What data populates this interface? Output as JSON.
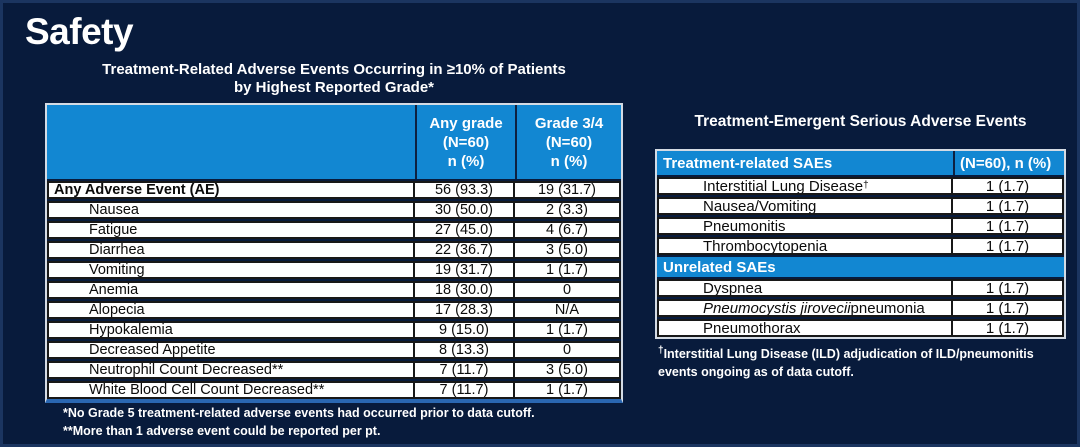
{
  "slide": {
    "title": "Safety"
  },
  "colors": {
    "background": "#081B3C",
    "edge_border": "#1B3560",
    "header_blue": "#1287D2",
    "bottom_strip_blue": "#2A67B2",
    "cell_border": "#181818",
    "table_outline": "#D4DBE4",
    "text_light": "#FFFFFF",
    "text_dark": "#0B0B0B"
  },
  "left_table": {
    "title_line1": "Treatment-Related Adverse Events Occurring in ≥10% of Patients",
    "title_line2": "by Highest Reported Grade*",
    "columns": [
      {
        "lines": [
          "Any grade",
          "(N=60)",
          "n (%)"
        ]
      },
      {
        "lines": [
          "Grade 3/4",
          "(N=60)",
          "n (%)"
        ]
      }
    ],
    "rows": [
      {
        "label": "Any Adverse Event (AE)",
        "any_grade": "56 (93.3)",
        "grade_3_4": "19 (31.7)"
      },
      {
        "label": "Nausea",
        "any_grade": "30 (50.0)",
        "grade_3_4": "2 (3.3)"
      },
      {
        "label": "Fatigue",
        "any_grade": "27 (45.0)",
        "grade_3_4": "4 (6.7)"
      },
      {
        "label": "Diarrhea",
        "any_grade": "22 (36.7)",
        "grade_3_4": "3 (5.0)"
      },
      {
        "label": "Vomiting",
        "any_grade": "19 (31.7)",
        "grade_3_4": "1 (1.7)"
      },
      {
        "label": "Anemia",
        "any_grade": "18 (30.0)",
        "grade_3_4": "0"
      },
      {
        "label": "Alopecia",
        "any_grade": "17 (28.3)",
        "grade_3_4": "N/A"
      },
      {
        "label": "Hypokalemia",
        "any_grade": "9 (15.0)",
        "grade_3_4": "1 (1.7)"
      },
      {
        "label": "Decreased Appetite",
        "any_grade": "8 (13.3)",
        "grade_3_4": "0"
      },
      {
        "label": "Neutrophil Count Decreased**",
        "any_grade": "7 (11.7)",
        "grade_3_4": "3 (5.0)"
      },
      {
        "label": "White Blood Cell Count Decreased**",
        "any_grade": "7 (11.7)",
        "grade_3_4": "1 (1.7)"
      }
    ],
    "footnote1": "*No Grade 5 treatment-related adverse events had occurred prior to data cutoff.",
    "footnote2": "**More than 1 adverse event could be reported per pt."
  },
  "right_table": {
    "title": "Treatment-Emergent Serious Adverse Events",
    "header": {
      "label": "Treatment-related SAEs",
      "value": "(N=60), n (%)"
    },
    "related_rows": [
      {
        "label": "Interstitial Lung Disease",
        "sup": "†",
        "value": "1 (1.7)"
      },
      {
        "label": "Nausea/Vomiting",
        "value": "1 (1.7)"
      },
      {
        "label": "Pneumonitis",
        "value": "1 (1.7)"
      },
      {
        "label": "Thrombocytopenia",
        "value": "1 (1.7)"
      }
    ],
    "section_label": "Unrelated SAEs",
    "unrelated_rows": [
      {
        "label": "Dyspnea",
        "value": "1 (1.7)"
      },
      {
        "label_italic": "Pneumocystis jirovecii",
        "label_rest": " pneumonia",
        "value": "1 (1.7)"
      },
      {
        "label": "Pneumothorax",
        "value": "1 (1.7)"
      }
    ],
    "footnote_symbol": "†",
    "footnote_text": "Interstitial Lung Disease (ILD) adjudication of ILD/pneumonitis events ongoing as of data cutoff."
  }
}
